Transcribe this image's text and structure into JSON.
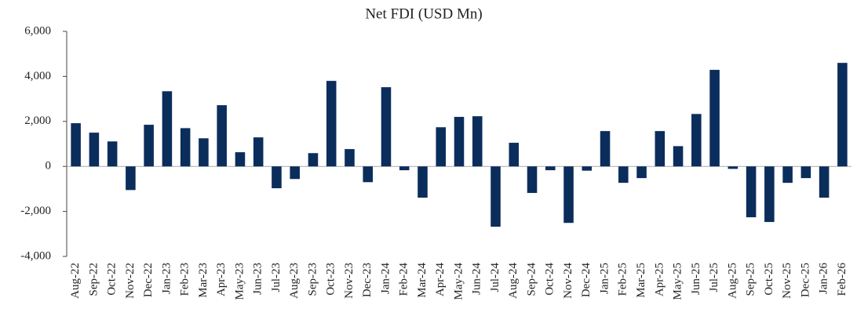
{
  "chart_data": {
    "type": "bar",
    "title": "Net FDI  (USD Mn)",
    "categories": [
      "Aug-22",
      "Sep-22",
      "Oct-22",
      "Nov-22",
      "Dec-22",
      "Jan-23",
      "Feb-23",
      "Mar-23",
      "Apr-23",
      "May-23",
      "Jun-23",
      "Jul-23",
      "Aug-23",
      "Sep-23",
      "Oct-23",
      "Nov-23",
      "Dec-23",
      "Jan-24",
      "Feb-24",
      "Mar-24",
      "Apr-24",
      "May-24",
      "Jun-24",
      "Jul-24",
      "Aug-24",
      "Sep-24",
      "Oct-24",
      "Nov-24",
      "Dec-24",
      "Jan-25",
      "Feb-25",
      "Mar-25",
      "Apr-25",
      "May-25",
      "Jun-25",
      "Jul-25",
      "Aug-25",
      "Sep-25",
      "Oct-25",
      "Nov-25",
      "Dec-25",
      "Jan-26",
      "Feb-26"
    ],
    "values": [
      1920,
      1500,
      1110,
      -1050,
      1850,
      3340,
      1700,
      1250,
      2720,
      630,
      1290,
      -970,
      -560,
      590,
      3800,
      770,
      -700,
      3520,
      -170,
      -1390,
      1740,
      2200,
      2230,
      -2680,
      1050,
      -1180,
      -170,
      -2510,
      -190,
      1570,
      -730,
      -520,
      1570,
      900,
      2330,
      4290,
      -110,
      -2260,
      -2470,
      -730,
      -520,
      -1390,
      4600
    ],
    "color": "#0b2d5b",
    "ylim": [
      -4000,
      6000
    ],
    "yticks": [
      {
        "value": -4000,
        "label": "-4,000"
      },
      {
        "value": -2000,
        "label": "-2,000"
      },
      0,
      {
        "value": 2000,
        "label": "2,000"
      },
      {
        "value": 4000,
        "label": "4,000"
      },
      {
        "value": 6000,
        "label": "6,000"
      }
    ],
    "grid": false
  }
}
